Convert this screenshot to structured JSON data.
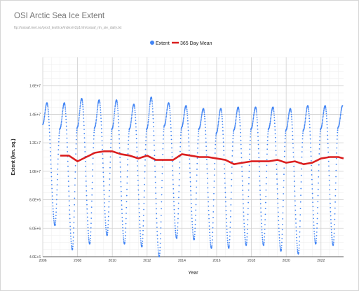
{
  "chart_data": {
    "type": "line",
    "title": "OSI Arctic Sea Ice Extent",
    "subtitle": "ftp://osisaf.met.no/prod_test/ice/index/v2p1/nh/osisaf_nh_sie_daily.txt",
    "xlabel": "Year",
    "ylabel": "Extent (km. sq.)",
    "xlim": [
      2006.0,
      2023.3
    ],
    "ylim": [
      4000000,
      18000000
    ],
    "x_ticks": [
      "2006",
      "2008",
      "2010",
      "2012",
      "2014",
      "2016",
      "2018",
      "2020",
      "2022"
    ],
    "y_ticks": [
      "4.0E+6",
      "6.0E+6",
      "8.0E+6",
      "1.0E+7",
      "1.2E+7",
      "1.4E+7",
      "1.6E+7"
    ],
    "grid": true,
    "legend_position": "top",
    "series": [
      {
        "name": "Extent",
        "style": "dots",
        "color": "#4285f4",
        "x": [
          2006.0,
          2006.24,
          2006.7,
          2006.99,
          2007.24,
          2007.7,
          2007.99,
          2008.24,
          2008.7,
          2008.99,
          2009.24,
          2009.7,
          2009.99,
          2010.24,
          2010.7,
          2010.99,
          2011.24,
          2011.7,
          2011.99,
          2012.24,
          2012.7,
          2012.99,
          2013.24,
          2013.7,
          2013.99,
          2014.24,
          2014.7,
          2014.99,
          2015.24,
          2015.7,
          2015.99,
          2016.24,
          2016.7,
          2016.99,
          2017.24,
          2017.7,
          2017.99,
          2018.24,
          2018.7,
          2018.99,
          2019.24,
          2019.7,
          2019.99,
          2020.24,
          2020.7,
          2020.99,
          2021.24,
          2021.7,
          2021.99,
          2022.24,
          2022.7,
          2022.99,
          2023.24
        ],
        "y": [
          13300000,
          14800000,
          6200000,
          13000000,
          14800000,
          4500000,
          13100000,
          15100000,
          4900000,
          13100000,
          15000000,
          5500000,
          13000000,
          15000000,
          4900000,
          13000000,
          14700000,
          4700000,
          13000000,
          15200000,
          4000000,
          13200000,
          14800000,
          5300000,
          13100000,
          14600000,
          5200000,
          13000000,
          14400000,
          4600000,
          12700000,
          14400000,
          4600000,
          12900000,
          14500000,
          4800000,
          13000000,
          14500000,
          4800000,
          13000000,
          14500000,
          4400000,
          12900000,
          14400000,
          4200000,
          12900000,
          14600000,
          4900000,
          13000000,
          14600000,
          4800000,
          13100000,
          14600000
        ]
      },
      {
        "name": "365 Day Mean",
        "style": "line",
        "color": "#db1f1f",
        "x": [
          2007.0,
          2007.5,
          2008.0,
          2008.5,
          2009.0,
          2009.5,
          2010.0,
          2010.5,
          2011.0,
          2011.5,
          2012.0,
          2012.5,
          2013.0,
          2013.5,
          2014.0,
          2014.5,
          2015.0,
          2015.5,
          2016.0,
          2016.5,
          2017.0,
          2017.5,
          2018.0,
          2018.5,
          2019.0,
          2019.5,
          2020.0,
          2020.5,
          2021.0,
          2021.5,
          2022.0,
          2022.5,
          2023.0,
          2023.3
        ],
        "y": [
          11100000,
          11100000,
          10700000,
          11000000,
          11300000,
          11400000,
          11400000,
          11200000,
          11100000,
          10900000,
          11100000,
          10800000,
          10800000,
          10800000,
          11200000,
          11100000,
          11000000,
          11000000,
          10900000,
          10800000,
          10500000,
          10600000,
          10700000,
          10700000,
          10700000,
          10800000,
          10600000,
          10700000,
          10500000,
          10600000,
          10900000,
          11000000,
          11000000,
          10900000
        ]
      }
    ]
  }
}
